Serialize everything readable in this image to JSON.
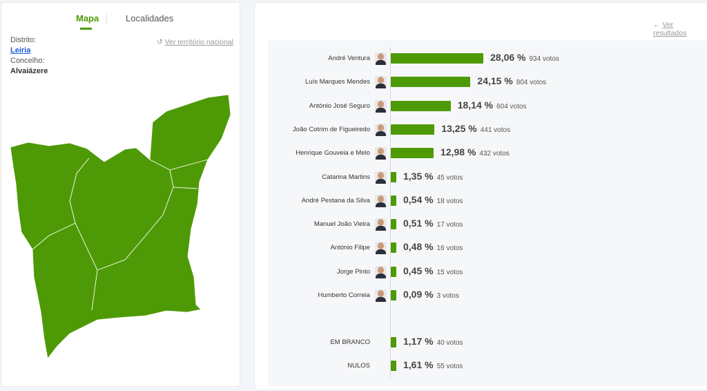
{
  "tabs": {
    "map": "Mapa",
    "localities": "Localidades"
  },
  "location": {
    "district_label": "Distrito:",
    "district": "Leiria",
    "municipality_label": "Concelho:",
    "municipality": "Alvaiázere"
  },
  "links": {
    "national": "Ver território nacional",
    "national_icon": "undo-icon",
    "results": "Ver resultados",
    "results_icon": "arrow-left-icon"
  },
  "colors": {
    "accent": "#4e9a06",
    "map_fill": "#4e9a06"
  },
  "results": [
    {
      "name": "André Ventura",
      "pct": 28.06,
      "pct_label": "28,06 %",
      "votes": "934 votos"
    },
    {
      "name": "Luís Marques Mendes",
      "pct": 24.15,
      "pct_label": "24,15 %",
      "votes": "804 votos"
    },
    {
      "name": "António José Seguro",
      "pct": 18.14,
      "pct_label": "18,14 %",
      "votes": "604 votos"
    },
    {
      "name": "João Cotrim de Figueiredo",
      "pct": 13.25,
      "pct_label": "13,25 %",
      "votes": "441 votos"
    },
    {
      "name": "Henrique Gouveia e Melo",
      "pct": 12.98,
      "pct_label": "12,98 %",
      "votes": "432 votos"
    },
    {
      "name": "Catarina Martins",
      "pct": 1.35,
      "pct_label": "1,35 %",
      "votes": "45 votos"
    },
    {
      "name": "André Pestana da Silva",
      "pct": 0.54,
      "pct_label": "0,54 %",
      "votes": "18 votos"
    },
    {
      "name": "Manuel João Vieira",
      "pct": 0.51,
      "pct_label": "0,51 %",
      "votes": "17 votos"
    },
    {
      "name": "António Filipe",
      "pct": 0.48,
      "pct_label": "0,48 %",
      "votes": "16 votos"
    },
    {
      "name": "Jorge Pinto",
      "pct": 0.45,
      "pct_label": "0,45 %",
      "votes": "15 votos"
    },
    {
      "name": "Humberto Correia",
      "pct": 0.09,
      "pct_label": "0,09 %",
      "votes": "3 votos"
    }
  ],
  "other": [
    {
      "name": "EM BRANCO",
      "pct": 1.17,
      "pct_label": "1,17 %",
      "votes": "40 votos"
    },
    {
      "name": "NULOS",
      "pct": 1.61,
      "pct_label": "1,61 %",
      "votes": "55 votos"
    }
  ]
}
